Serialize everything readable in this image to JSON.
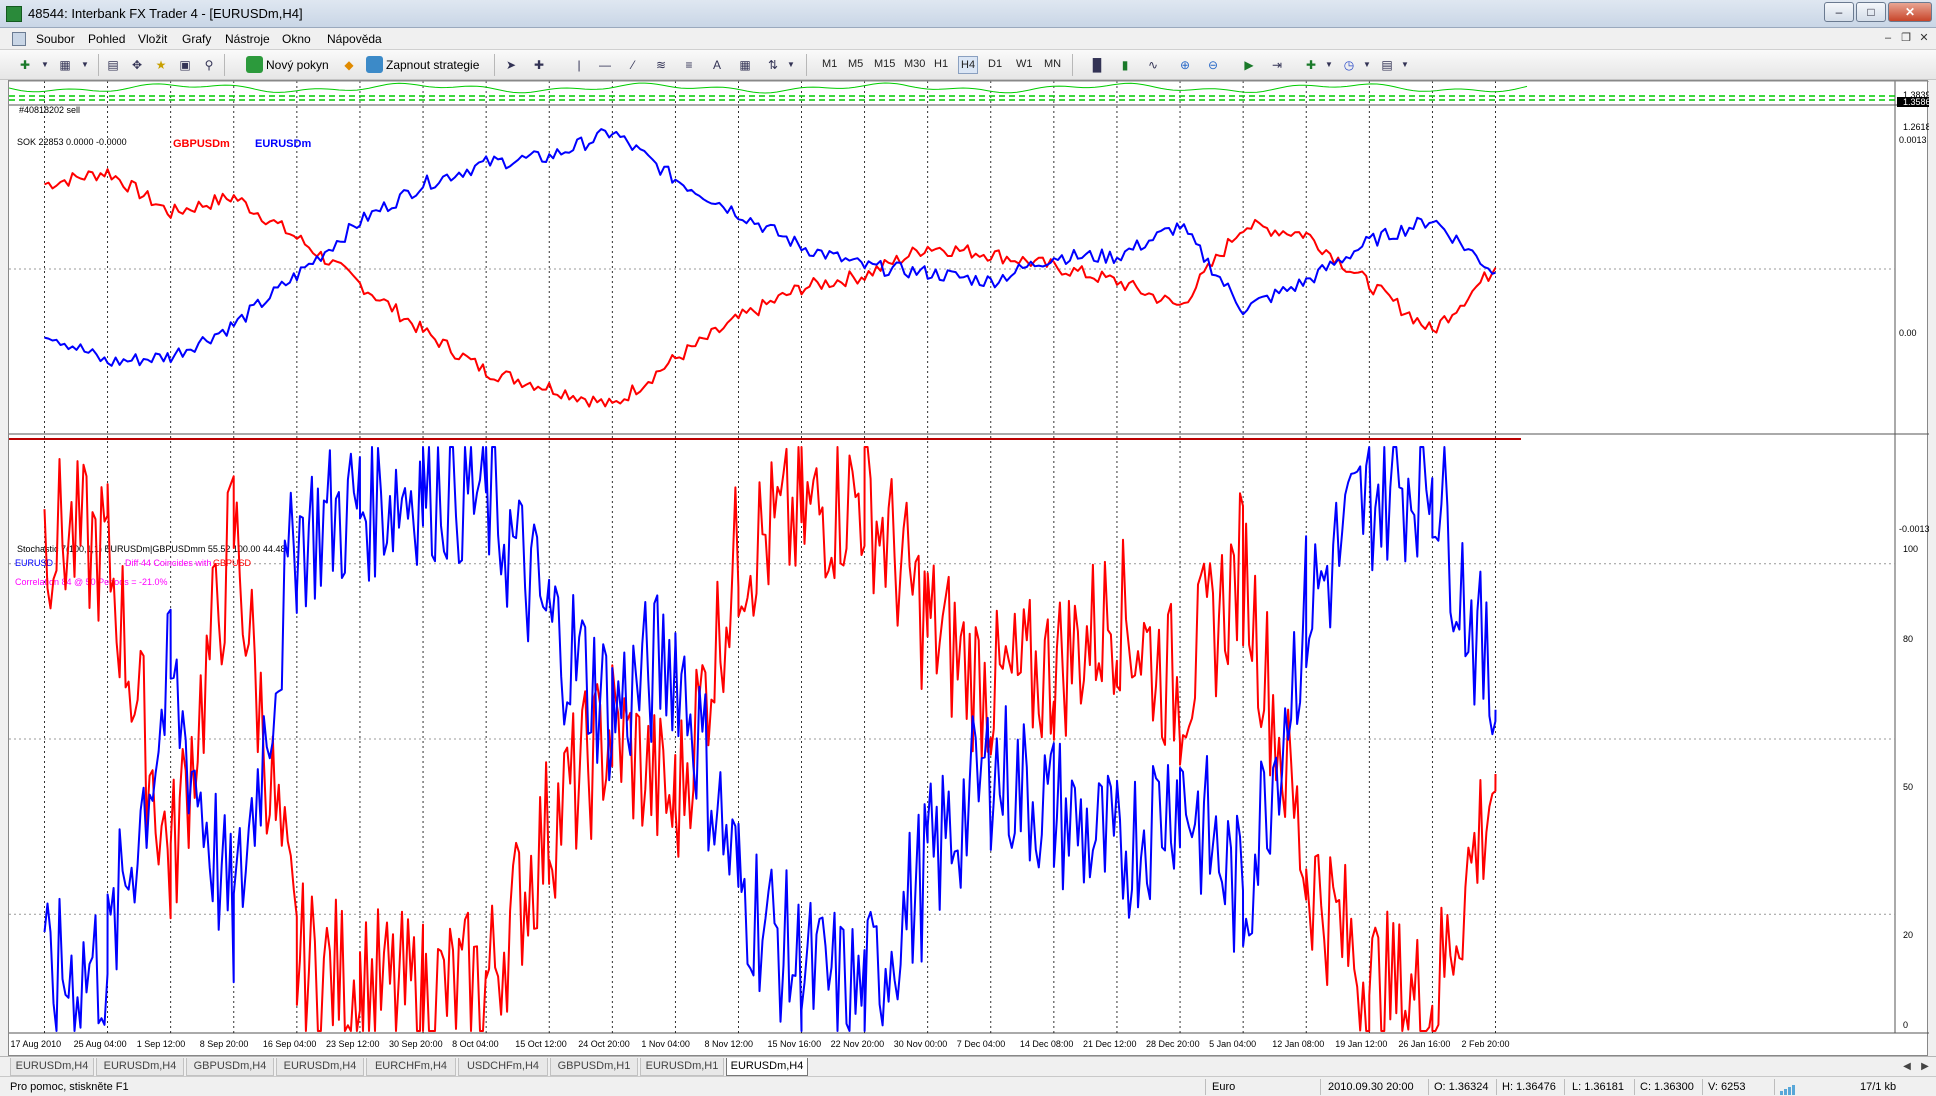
{
  "window": {
    "title": "48544: Interbank FX Trader 4 - [EURUSDm,H4]"
  },
  "menu": [
    "Soubor",
    "Pohled",
    "Vložit",
    "Grafy",
    "Nástroje",
    "Okno",
    "Nápověda"
  ],
  "toolbar": {
    "new_order": "Nový pokyn",
    "strategies": "Zapnout strategie",
    "timeframes": [
      "M1",
      "M5",
      "M15",
      "M30",
      "H1",
      "H4",
      "D1",
      "W1",
      "MN"
    ],
    "active_timeframe": "H4"
  },
  "panes": {
    "top": {
      "label": "#40818202 sell",
      "scale": [
        "1.38390",
        "1.35861",
        "1.26180"
      ],
      "current_price": "1.35861"
    },
    "middle": {
      "label": "SOK 22853 0.0000 -0.0000",
      "legend": [
        {
          "name": "GBPUSDm",
          "color": "#ff0000"
        },
        {
          "name": "EURUSDm",
          "color": "#0000ff"
        }
      ],
      "scale": [
        "0.0013",
        "0.00",
        "-0.0013"
      ]
    },
    "bottom": {
      "label": "Stochastic 7(100,1,1) EURUSDm|GBPUSDmm 55.52 100.00 44.48",
      "sub1a": "EURUSD",
      "sub1b": "Diff 44 Coincides with",
      "sub1c": "GBPUSD",
      "sub2": "Correlation 84 @ 50 Periods = -21.0%",
      "scale": [
        "100",
        "80",
        "50",
        "20",
        "0"
      ]
    }
  },
  "chart_data": {
    "type": "line",
    "x": [
      "17 Aug 2010",
      "25 Aug 04:00",
      "1 Sep 12:00",
      "8 Sep 20:00",
      "16 Sep 04:00",
      "23 Sep 12:00",
      "30 Sep 20:00",
      "8 Oct 04:00",
      "15 Oct 12:00",
      "24 Oct 20:00",
      "1 Nov 04:00",
      "8 Nov 12:00",
      "15 Nov 16:00",
      "22 Nov 20:00",
      "30 Nov 00:00",
      "7 Dec 04:00",
      "14 Dec 08:00",
      "21 Dec 12:00",
      "28 Dec 20:00",
      "5 Jan 04:00",
      "12 Jan 08:00",
      "19 Jan 12:00",
      "26 Jan 16:00",
      "2 Feb 20:00"
    ],
    "series": [
      {
        "name": "GBPUSDm",
        "values": [
          0.00068,
          0.00078,
          0.00045,
          0.00058,
          0.00025,
          -0.00012,
          -0.0005,
          -0.00082,
          -0.00095,
          -0.0011,
          -0.00072,
          -0.0004,
          -0.00015,
          -5e-05,
          0.00018,
          0.00012,
          2e-05,
          -0.0001,
          -0.0003,
          0.00035,
          0.00028,
          -0.00012,
          -0.0005,
          1e-05
        ]
      },
      {
        "name": "EURUSDm",
        "values": [
          -0.0005,
          -0.00075,
          -0.0007,
          -0.00045,
          -5e-05,
          0.00038,
          0.00068,
          0.00085,
          0.0009,
          0.0011,
          0.00072,
          0.00045,
          0.00018,
          2e-05,
          -3e-05,
          -0.0001,
          0.0001,
          0.0001,
          0.00035,
          -0.00032,
          -0.0001,
          0.00022,
          0.0004,
          -3e-05
        ]
      }
    ],
    "stochastic": [
      {
        "name": "EURUSD",
        "values": [
          8,
          12,
          60,
          18,
          85,
          90,
          94,
          92,
          70,
          55,
          65,
          25,
          10,
          6,
          28,
          45,
          38,
          30,
          42,
          22,
          72,
          92,
          96,
          55
        ]
      },
      {
        "name": "GBPUSD",
        "values": [
          86,
          82,
          28,
          86,
          12,
          8,
          6,
          8,
          35,
          52,
          38,
          82,
          88,
          92,
          70,
          58,
          62,
          72,
          58,
          80,
          28,
          8,
          4,
          44
        ]
      }
    ],
    "ylim_stochastic": [
      0,
      100
    ],
    "ylim": [
      -0.0013,
      0.0013
    ]
  },
  "tabs": [
    "EURUSDm,H4",
    "EURUSDm,H4",
    "GBPUSDm,H4",
    "EURUSDm,H4",
    "EURCHFm,H4",
    "USDCHFm,H4",
    "GBPUSDm,H1",
    "EURUSDm,H1",
    "EURUSDm,H4"
  ],
  "active_tab": 8,
  "status": {
    "help": "Pro pomoc, stiskněte F1",
    "profile": "Euro",
    "datetime": "2010.09.30 20:00",
    "open": "O: 1.36324",
    "high": "H: 1.36476",
    "low": "L: 1.36181",
    "close": "C: 1.36300",
    "volume": "V: 6253",
    "traffic": "17/1 kb"
  },
  "colors": {
    "gbp": "#ff0000",
    "eur": "#0000ff",
    "correlation_text": "#ff00ff",
    "top_line": "#00cc00"
  }
}
